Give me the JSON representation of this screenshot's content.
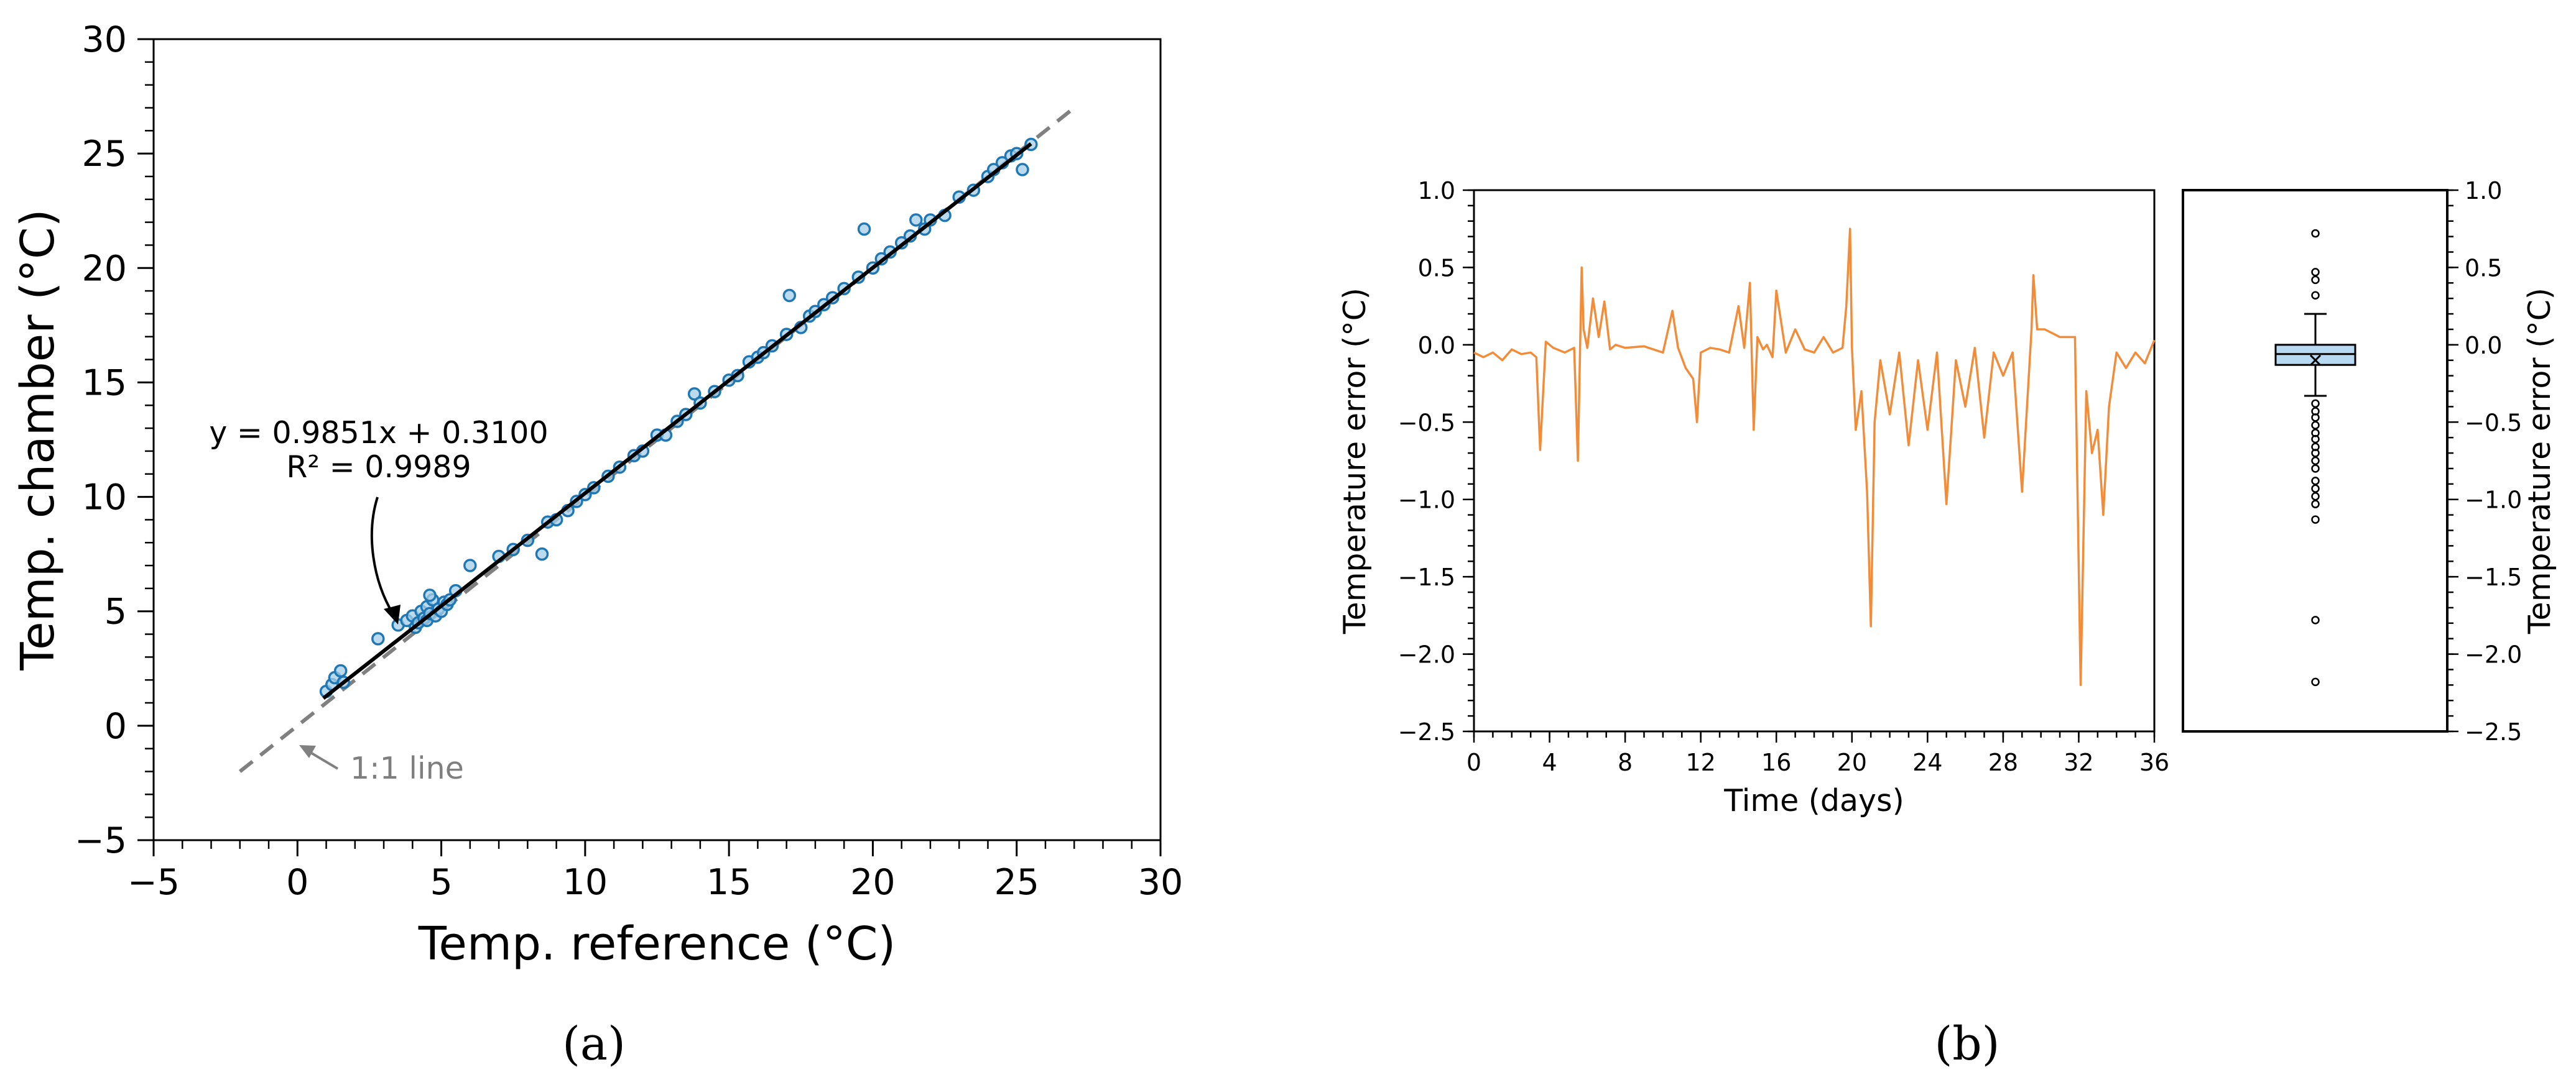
{
  "colors": {
    "scatter": "#1f77b4",
    "scatter_fill": "#a6cde8",
    "fit_line": "#000000",
    "identity_line": "#808080",
    "series_b": "#f28c38",
    "box_fill": "#b8d9f2",
    "text": "#000000",
    "identity_label": "#7f7f7f"
  },
  "panel_labels": {
    "a": "(a)",
    "b": "(b)"
  },
  "chart_data": [
    {
      "id": "a",
      "type": "scatter",
      "xlabel": "Temp. reference (°C)",
      "ylabel": "Temp. chamber (°C)",
      "xlim": [
        -5,
        30
      ],
      "ylim": [
        -5,
        30
      ],
      "xticks": [
        -5,
        0,
        5,
        10,
        15,
        20,
        25,
        30
      ],
      "yticks": [
        -5,
        0,
        5,
        10,
        15,
        20,
        25,
        30
      ],
      "tick_labels_x": [
        "−5",
        "0",
        "5",
        "10",
        "15",
        "20",
        "25",
        "30"
      ],
      "tick_labels_y": [
        "−5",
        "0",
        "5",
        "10",
        "15",
        "20",
        "25",
        "30"
      ],
      "grid": false,
      "annotations": {
        "equation": "y = 0.9851x + 0.3100",
        "r_squared": "R² = 0.9989",
        "identity_label": "1:1 line"
      },
      "fit": {
        "slope": 0.9851,
        "intercept": 0.31,
        "x_range": [
          0.9,
          25.5
        ]
      },
      "identity_line": {
        "x_range": [
          -2,
          27
        ]
      },
      "points": [
        [
          1.0,
          1.5
        ],
        [
          1.2,
          1.8
        ],
        [
          1.3,
          2.1
        ],
        [
          1.5,
          2.4
        ],
        [
          1.6,
          1.9
        ],
        [
          2.8,
          3.8
        ],
        [
          3.5,
          4.4
        ],
        [
          3.8,
          4.6
        ],
        [
          4.0,
          4.8
        ],
        [
          4.1,
          4.3
        ],
        [
          4.2,
          4.5
        ],
        [
          4.3,
          5.0
        ],
        [
          4.4,
          4.7
        ],
        [
          4.5,
          5.2
        ],
        [
          4.5,
          4.6
        ],
        [
          4.6,
          4.9
        ],
        [
          4.7,
          5.5
        ],
        [
          4.8,
          4.8
        ],
        [
          4.9,
          5.1
        ],
        [
          5.0,
          5.0
        ],
        [
          5.1,
          5.4
        ],
        [
          5.2,
          5.3
        ],
        [
          5.3,
          5.5
        ],
        [
          5.5,
          5.9
        ],
        [
          4.6,
          5.7
        ],
        [
          6.0,
          7.0
        ],
        [
          7.0,
          7.4
        ],
        [
          7.5,
          7.7
        ],
        [
          8.0,
          8.1
        ],
        [
          8.5,
          7.5
        ],
        [
          8.7,
          8.9
        ],
        [
          9.0,
          9.0
        ],
        [
          9.4,
          9.4
        ],
        [
          9.7,
          9.8
        ],
        [
          10.0,
          10.1
        ],
        [
          10.3,
          10.4
        ],
        [
          10.8,
          10.9
        ],
        [
          11.2,
          11.3
        ],
        [
          11.7,
          11.8
        ],
        [
          12.0,
          12.0
        ],
        [
          12.5,
          12.7
        ],
        [
          12.8,
          12.7
        ],
        [
          13.2,
          13.3
        ],
        [
          13.5,
          13.6
        ],
        [
          13.8,
          14.5
        ],
        [
          14.0,
          14.1
        ],
        [
          14.5,
          14.6
        ],
        [
          15.0,
          15.1
        ],
        [
          15.3,
          15.3
        ],
        [
          15.7,
          15.9
        ],
        [
          16.0,
          16.1
        ],
        [
          16.2,
          16.3
        ],
        [
          16.5,
          16.6
        ],
        [
          17.0,
          17.1
        ],
        [
          17.1,
          18.8
        ],
        [
          17.5,
          17.4
        ],
        [
          17.8,
          17.9
        ],
        [
          18.0,
          18.1
        ],
        [
          18.3,
          18.4
        ],
        [
          18.6,
          18.7
        ],
        [
          19.0,
          19.1
        ],
        [
          19.5,
          19.6
        ],
        [
          19.7,
          21.7
        ],
        [
          20.0,
          20.0
        ],
        [
          20.3,
          20.4
        ],
        [
          20.6,
          20.7
        ],
        [
          21.0,
          21.1
        ],
        [
          21.3,
          21.4
        ],
        [
          21.5,
          22.1
        ],
        [
          21.8,
          21.7
        ],
        [
          22.0,
          22.1
        ],
        [
          22.5,
          22.3
        ],
        [
          23.0,
          23.1
        ],
        [
          23.5,
          23.4
        ],
        [
          24.0,
          24.0
        ],
        [
          24.2,
          24.3
        ],
        [
          24.5,
          24.6
        ],
        [
          24.8,
          24.9
        ],
        [
          25.0,
          25.0
        ],
        [
          25.2,
          24.3
        ],
        [
          25.5,
          25.4
        ]
      ]
    },
    {
      "id": "b",
      "type": "line",
      "xlabel": "Time (days)",
      "ylabel": "Temperature error (°C)",
      "xlim": [
        0,
        36
      ],
      "ylim": [
        -2.5,
        1.0
      ],
      "xticks": [
        0,
        4,
        8,
        12,
        16,
        20,
        24,
        28,
        32,
        36
      ],
      "yticks": [
        -2.5,
        -2.0,
        -1.5,
        -1.0,
        -0.5,
        0.0,
        0.5,
        1.0
      ],
      "tick_labels_x": [
        "0",
        "4",
        "8",
        "12",
        "16",
        "20",
        "24",
        "28",
        "32",
        "36"
      ],
      "tick_labels_y": [
        "−2.5",
        "−2.0",
        "−1.5",
        "−1.0",
        "−0.5",
        "0.0",
        "0.5",
        "1.0"
      ],
      "grid": false,
      "x": [
        0,
        0.5,
        1,
        1.5,
        2,
        2.5,
        3,
        3.3,
        3.5,
        3.8,
        4.2,
        4.8,
        5.3,
        5.5,
        5.7,
        5.8,
        6.0,
        6.3,
        6.6,
        6.9,
        7.2,
        7.5,
        8,
        9,
        10,
        10.5,
        10.8,
        11.2,
        11.6,
        11.8,
        12.0,
        12.5,
        13,
        13.5,
        14,
        14.3,
        14.6,
        14.8,
        15.0,
        15.3,
        15.5,
        15.8,
        16,
        16.5,
        17,
        17.5,
        18,
        18.5,
        19,
        19.5,
        19.7,
        19.9,
        20.0,
        20.2,
        20.5,
        20.8,
        21.0,
        21.2,
        21.5,
        22,
        22.5,
        23,
        23.5,
        24,
        24.5,
        25,
        25.5,
        26,
        26.5,
        27,
        27.5,
        28,
        28.5,
        29,
        29.5,
        29.6,
        29.8,
        30.2,
        31,
        31.8,
        32.1,
        32.4,
        32.7,
        33.0,
        33.3,
        33.6,
        34,
        34.5,
        35,
        35.5,
        36
      ],
      "y": [
        -0.05,
        -0.08,
        -0.05,
        -0.1,
        -0.03,
        -0.06,
        -0.05,
        -0.08,
        -0.68,
        0.02,
        -0.02,
        -0.05,
        -0.02,
        -0.75,
        0.5,
        0.1,
        -0.02,
        0.3,
        0.05,
        0.28,
        -0.03,
        0.0,
        -0.02,
        -0.01,
        -0.05,
        0.22,
        -0.02,
        -0.15,
        -0.22,
        -0.5,
        -0.05,
        -0.02,
        -0.03,
        -0.05,
        0.25,
        -0.02,
        0.4,
        -0.55,
        0.05,
        -0.03,
        0.0,
        -0.08,
        0.35,
        -0.05,
        0.1,
        -0.03,
        -0.05,
        0.05,
        -0.05,
        -0.02,
        0.25,
        0.75,
        -0.02,
        -0.55,
        -0.3,
        -0.95,
        -1.82,
        -0.5,
        -0.1,
        -0.45,
        -0.05,
        -0.65,
        -0.1,
        -0.55,
        -0.05,
        -1.03,
        -0.1,
        -0.4,
        -0.02,
        -0.6,
        -0.05,
        -0.2,
        -0.05,
        -0.95,
        0.1,
        0.45,
        0.1,
        0.1,
        0.05,
        0.05,
        -2.2,
        -0.3,
        -0.7,
        -0.55,
        -1.1,
        -0.4,
        -0.05,
        -0.15,
        -0.05,
        -0.12,
        0.03
      ]
    },
    {
      "id": "b-box",
      "type": "box",
      "ylabel": "Temperature error (°C)",
      "ylim": [
        -2.5,
        1.0
      ],
      "yticks": [
        -2.5,
        -2.0,
        -1.5,
        -1.0,
        -0.5,
        0.0,
        0.5,
        1.0
      ],
      "tick_labels_y": [
        "−2.5",
        "−2.0",
        "−1.5",
        "−1.0",
        "−0.5",
        "0.0",
        "0.5",
        "1.0"
      ],
      "q1": -0.13,
      "median": -0.06,
      "q3": 0.0,
      "mean": -0.1,
      "whisker_low": -0.33,
      "whisker_high": 0.2,
      "outliers": [
        0.72,
        0.47,
        0.42,
        0.32,
        -0.38,
        -0.43,
        -0.47,
        -0.52,
        -0.57,
        -0.61,
        -0.66,
        -0.7,
        -0.75,
        -0.8,
        -0.88,
        -0.93,
        -0.98,
        -1.03,
        -1.13,
        -1.78,
        -2.18
      ]
    }
  ]
}
